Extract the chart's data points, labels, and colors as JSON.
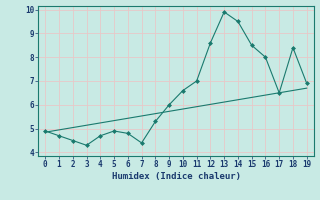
{
  "x": [
    0,
    1,
    2,
    3,
    4,
    5,
    6,
    7,
    8,
    9,
    10,
    11,
    12,
    13,
    14,
    15,
    16,
    17,
    18,
    19
  ],
  "y": [
    4.9,
    4.7,
    4.5,
    4.3,
    4.7,
    4.9,
    4.8,
    4.4,
    5.3,
    6.0,
    6.6,
    7.0,
    8.6,
    9.9,
    9.5,
    8.5,
    8.0,
    6.5,
    8.4,
    6.9
  ],
  "trend_x": [
    0,
    19
  ],
  "trend_y": [
    4.85,
    6.7
  ],
  "line_color": "#1a7a6e",
  "bg_color": "#c8eae4",
  "grid_color": "#e8c8c8",
  "xlabel": "Humidex (Indice chaleur)",
  "ylim": [
    3.85,
    10.15
  ],
  "xlim": [
    -0.5,
    19.5
  ],
  "yticks": [
    4,
    5,
    6,
    7,
    8,
    9,
    10
  ],
  "xticks": [
    0,
    1,
    2,
    3,
    4,
    5,
    6,
    7,
    8,
    9,
    10,
    11,
    12,
    13,
    14,
    15,
    16,
    17,
    18,
    19
  ]
}
